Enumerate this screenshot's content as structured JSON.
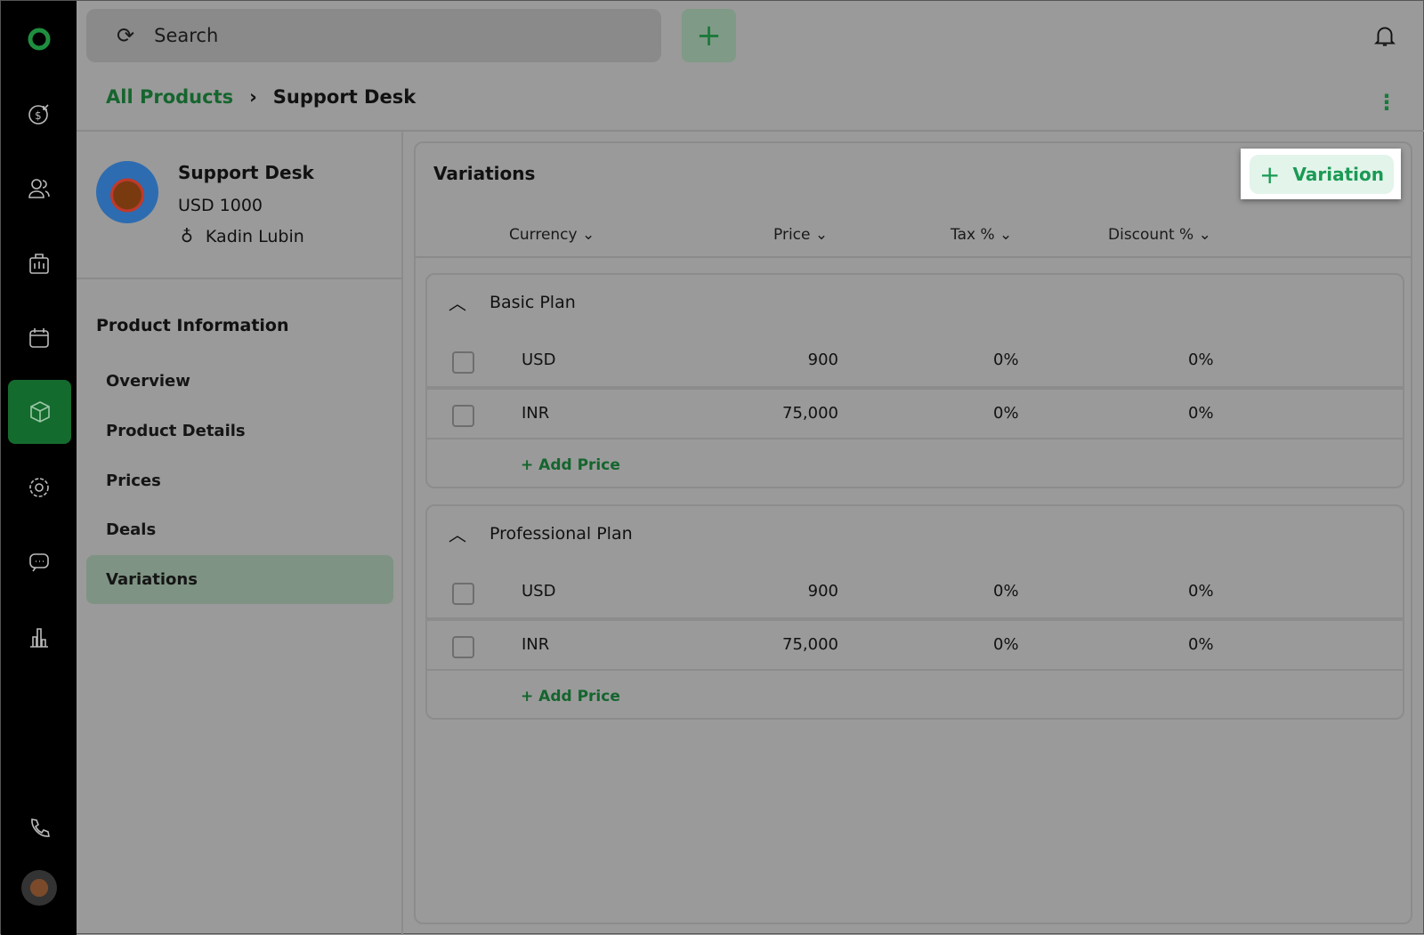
{
  "search": {
    "placeholder": "Search"
  },
  "breadcrumb": {
    "parent": "All Products",
    "current": "Support Desk"
  },
  "product": {
    "name": "Support Desk",
    "price": "USD 1000",
    "owner": "Kadin Lubin"
  },
  "nav": {
    "heading": "Product Information",
    "items": [
      "Overview",
      "Product Details",
      "Prices",
      "Deals",
      "Variations"
    ],
    "active": "Variations"
  },
  "variations": {
    "title": "Variations",
    "add_button": "Variation",
    "columns": [
      "Currency",
      "Price",
      "Tax %",
      "Discount %"
    ],
    "groups": [
      {
        "name": "Basic Plan",
        "rows": [
          {
            "currency": "USD",
            "price": "900",
            "tax": "0%",
            "discount": "0%"
          },
          {
            "currency": "INR",
            "price": "75,000",
            "tax": "0%",
            "discount": "0%"
          }
        ],
        "add_label": "+ Add Price"
      },
      {
        "name": "Professional Plan",
        "rows": [
          {
            "currency": "USD",
            "price": "900",
            "tax": "0%",
            "discount": "0%"
          },
          {
            "currency": "INR",
            "price": "75,000",
            "tax": "0%",
            "discount": "0%"
          }
        ],
        "add_label": "+ Add Price"
      }
    ]
  },
  "colors": {
    "brand": "#1a9a55",
    "sidebar": "#000000"
  }
}
